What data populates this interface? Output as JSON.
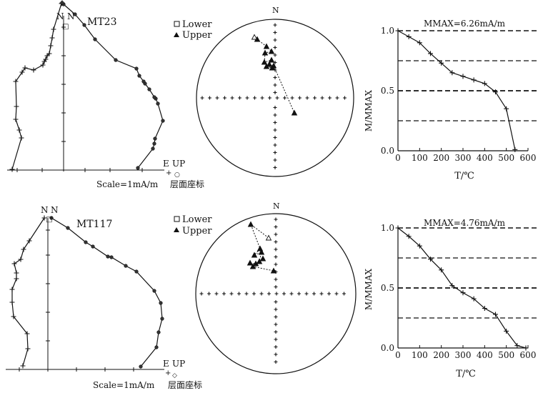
{
  "figure": {
    "rows": [
      {
        "sample": "MT23",
        "scale_note": "Scale=1mA/m",
        "coord_note": "层面座标",
        "mmax_label": "MMAX=6.26mA/m"
      },
      {
        "sample": "MT117",
        "scale_note": "Scale=1mA/m",
        "coord_note": "层面座标",
        "mmax_label": "MMAX=4.76mA/m"
      }
    ],
    "legend": {
      "lower": "Lower",
      "upper": "Upper"
    },
    "axis_labels": {
      "north": "N",
      "east": "E",
      "up": "UP"
    }
  },
  "chart_data": [
    {
      "type": "line",
      "subtype": "zijderveld",
      "sample": "MT23",
      "horizontal_projection": [
        [
          -72,
          -1
        ],
        [
          -59,
          -45
        ],
        [
          -62,
          -56
        ],
        [
          -67,
          -71
        ],
        [
          -66,
          -89
        ],
        [
          -67,
          -124
        ],
        [
          -58,
          -137
        ],
        [
          -54,
          -143
        ],
        [
          -42,
          -140
        ],
        [
          -29,
          -147
        ],
        [
          -27,
          -152
        ],
        [
          -25,
          -155
        ],
        [
          -23,
          -160
        ],
        [
          -20,
          -163
        ],
        [
          -18,
          -174
        ],
        [
          -16,
          -185
        ],
        [
          -14,
          -197
        ],
        [
          -3,
          -233
        ],
        [
          -2,
          -234
        ]
      ],
      "vertical_projection": [
        [
          104,
          -3
        ],
        [
          125,
          -30
        ],
        [
          127,
          -37
        ],
        [
          128,
          -44
        ],
        [
          139,
          -69
        ],
        [
          132,
          -93
        ],
        [
          129,
          -100
        ],
        [
          127,
          -102
        ],
        [
          120,
          -113
        ],
        [
          114,
          -121
        ],
        [
          112,
          -124
        ],
        [
          106,
          -132
        ],
        [
          102,
          -142
        ],
        [
          73,
          -154
        ],
        [
          44,
          -183
        ],
        [
          29,
          -203
        ],
        [
          16,
          -218
        ],
        [
          0,
          -232
        ],
        [
          -2,
          -234
        ]
      ]
    },
    {
      "type": "line",
      "subtype": "zijderveld",
      "sample": "MT117",
      "horizontal_projection": [
        [
          -35,
          -5
        ],
        [
          -28,
          -29
        ],
        [
          -29,
          -50
        ],
        [
          -48,
          -74
        ],
        [
          -50,
          -94
        ],
        [
          -50,
          -112
        ],
        [
          -44,
          -127
        ],
        [
          -44,
          -135
        ],
        [
          -47,
          -148
        ],
        [
          -38,
          -154
        ],
        [
          -34,
          -168
        ],
        [
          -26,
          -180
        ],
        [
          -5,
          -212
        ]
      ],
      "vertical_projection": [
        [
          130,
          -4
        ],
        [
          152,
          -31
        ],
        [
          155,
          -52
        ],
        [
          160,
          -71
        ],
        [
          158,
          -93
        ],
        [
          149,
          -110
        ],
        [
          124,
          -137
        ],
        [
          109,
          -145
        ],
        [
          89,
          -157
        ],
        [
          84,
          -158
        ],
        [
          63,
          -172
        ],
        [
          53,
          -178
        ],
        [
          28,
          -198
        ],
        [
          5,
          -212
        ]
      ]
    },
    {
      "type": "scatter",
      "subtype": "equal-area-stereonet",
      "sample": "MT23",
      "upper": [
        [
          -25,
          -82
        ],
        [
          -12,
          -72
        ],
        [
          -5,
          -65
        ],
        [
          -14,
          -63
        ],
        [
          -15,
          -50
        ],
        [
          -5,
          -53
        ],
        [
          -8,
          -47
        ],
        [
          -12,
          -44
        ],
        [
          -4,
          -42
        ],
        [
          -2,
          -45
        ],
        [
          27,
          21
        ]
      ],
      "lower": [
        [
          -29,
          -85
        ]
      ]
    },
    {
      "type": "scatter",
      "subtype": "equal-area-stereonet",
      "sample": "MT117",
      "upper": [
        [
          -35,
          -97
        ],
        [
          -22,
          -63
        ],
        [
          -30,
          -54
        ],
        [
          -20,
          -58
        ],
        [
          -23,
          -45
        ],
        [
          -18,
          -49
        ],
        [
          -28,
          -42
        ],
        [
          -36,
          -43
        ],
        [
          -32,
          -38
        ],
        [
          -3,
          -32
        ]
      ],
      "lower": [
        [
          -10,
          -78
        ]
      ]
    },
    {
      "type": "line",
      "subtype": "thermal-demagnetization",
      "sample": "MT23",
      "title": "MMAX=6.26mA/m",
      "xlabel": "T/℃",
      "ylabel": "M/MMAX",
      "xlim": [
        0,
        600
      ],
      "ylim": [
        0,
        1
      ],
      "x_ticks": [
        0,
        100,
        200,
        300,
        400,
        500,
        600
      ],
      "y_ticks": [
        0.0,
        0.5,
        1.0
      ],
      "x": [
        0,
        50,
        100,
        150,
        200,
        250,
        300,
        350,
        400,
        450,
        500,
        540
      ],
      "y": [
        1.0,
        0.95,
        0.9,
        0.81,
        0.73,
        0.65,
        0.62,
        0.59,
        0.56,
        0.49,
        0.35,
        0.01
      ],
      "dashed_levels": [
        1.0,
        0.75,
        0.5,
        0.25
      ]
    },
    {
      "type": "line",
      "subtype": "thermal-demagnetization",
      "sample": "MT117",
      "title": "MMAX=4.76mA/m",
      "xlabel": "T/℃",
      "ylabel": "M/MMAX",
      "xlim": [
        0,
        600
      ],
      "ylim": [
        0,
        1
      ],
      "x_ticks": [
        0,
        100,
        200,
        300,
        400,
        500,
        600
      ],
      "y_ticks": [
        0.0,
        0.5,
        1.0
      ],
      "x": [
        0,
        50,
        100,
        150,
        200,
        250,
        300,
        350,
        400,
        450,
        500,
        550,
        590
      ],
      "y": [
        1.0,
        0.93,
        0.85,
        0.74,
        0.65,
        0.52,
        0.46,
        0.41,
        0.33,
        0.28,
        0.14,
        0.02,
        0.0
      ],
      "dashed_levels": [
        1.0,
        0.75,
        0.5,
        0.25
      ]
    }
  ]
}
